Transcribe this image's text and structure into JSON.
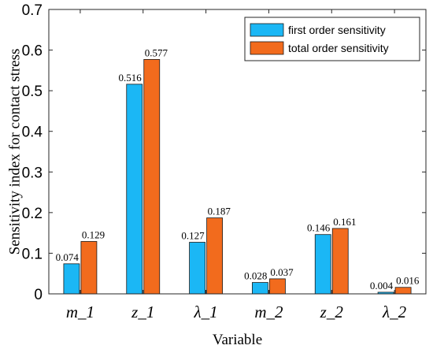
{
  "chart_data": {
    "type": "bar",
    "categories": [
      "m_1",
      "z_1",
      "λ_1",
      "m_2",
      "z_2",
      "λ_2"
    ],
    "series": [
      {
        "name": "first order sensitivity",
        "color": "#1bb7f5",
        "values": [
          0.074,
          0.516,
          0.127,
          0.028,
          0.146,
          0.004
        ],
        "labels": [
          "0.074",
          "0.516",
          "0.127",
          "0.028",
          "0.146",
          "0.004"
        ]
      },
      {
        "name": "total order sensitivity",
        "color": "#f26b1d",
        "values": [
          0.129,
          0.577,
          0.187,
          0.037,
          0.161,
          0.016
        ],
        "labels": [
          "0.129",
          "0.577",
          "0.187",
          "0.037",
          "0.161",
          "0.016"
        ]
      }
    ],
    "yticks": [
      "0",
      "0.1",
      "0.2",
      "0.3",
      "0.4",
      "0.5",
      "0.6",
      "0.7"
    ],
    "xlabel": "Variable",
    "ylabel": "Sensitivity index for contact stress",
    "ylim": [
      0,
      0.7
    ],
    "legend": "top-right",
    "grid": false
  }
}
